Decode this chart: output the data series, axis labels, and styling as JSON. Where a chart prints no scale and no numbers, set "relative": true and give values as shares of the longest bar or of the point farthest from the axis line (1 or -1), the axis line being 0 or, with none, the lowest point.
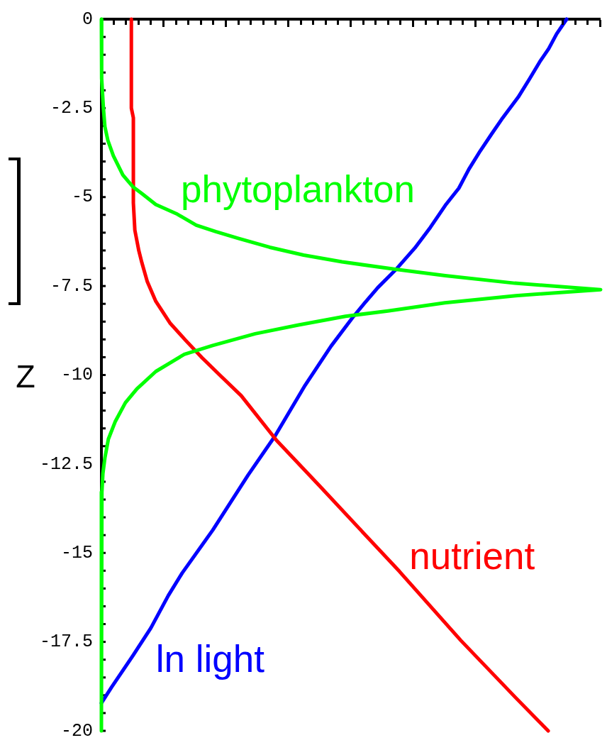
{
  "chart_data": {
    "type": "line",
    "orientation": "horizontal",
    "relative": true,
    "ylabel": "Z",
    "ylim": [
      -20,
      0
    ],
    "yticks": [
      0,
      {
        "value": -0.5,
        "label": null
      },
      {
        "value": -1,
        "label": null
      },
      {
        "value": -1.5,
        "label": null
      },
      {
        "value": -2,
        "label": null
      },
      -2.5,
      {
        "value": -3,
        "label": null
      },
      {
        "value": -3.5,
        "label": null
      },
      {
        "value": -4,
        "label": null
      },
      {
        "value": -4.5,
        "label": null
      },
      -5,
      {
        "value": -5.5,
        "label": null
      },
      {
        "value": -6,
        "label": null
      },
      {
        "value": -6.5,
        "label": null
      },
      {
        "value": -7,
        "label": null
      },
      -7.5,
      {
        "value": -8,
        "label": null
      },
      {
        "value": -8.5,
        "label": null
      },
      {
        "value": -9,
        "label": null
      },
      {
        "value": -9.5,
        "label": null
      },
      -10,
      {
        "value": -10.5,
        "label": null
      },
      {
        "value": -11,
        "label": null
      },
      {
        "value": -11.5,
        "label": null
      },
      {
        "value": -12,
        "label": null
      },
      -12.5,
      {
        "value": -13,
        "label": null
      },
      {
        "value": -13.5,
        "label": null
      },
      {
        "value": -14,
        "label": null
      },
      {
        "value": -14.5,
        "label": null
      },
      -15,
      {
        "value": -15.5,
        "label": null
      },
      {
        "value": -16,
        "label": null
      },
      {
        "value": -16.5,
        "label": null
      },
      {
        "value": -17,
        "label": null
      },
      -17.5,
      {
        "value": -18,
        "label": null
      },
      {
        "value": -18.5,
        "label": null
      },
      {
        "value": -19,
        "label": null
      },
      {
        "value": -19.5,
        "label": null
      },
      -20
    ],
    "tick_labels": "y",
    "marker": "none",
    "line_style": "solid",
    "series": [
      {
        "name": "phytoplankton",
        "color": "#00ff00",
        "x": [
          0,
          -0.89,
          -1.67,
          -2.5,
          -3.02,
          -3.41,
          -3.84,
          -4.38,
          -4.71,
          -4.9,
          -5.21,
          -5.48,
          -5.79,
          -5.97,
          -6.16,
          -6.41,
          -6.63,
          -6.82,
          -7.03,
          -7.21,
          -7.42,
          -7.6,
          -7.77,
          -7.97,
          -8.2,
          -8.35,
          -8.6,
          -8.84,
          -9.17,
          -9.42,
          -9.9,
          -10.39,
          -10.78,
          -11.3,
          -11.8,
          -12.33,
          -12.77,
          -13.29,
          -14.17,
          -20
        ],
        "values": [
          0,
          0,
          0.001,
          0.004,
          0.007,
          0.013,
          0.024,
          0.043,
          0.063,
          0.081,
          0.109,
          0.152,
          0.19,
          0.229,
          0.274,
          0.337,
          0.405,
          0.482,
          0.589,
          0.689,
          0.828,
          1,
          0.83,
          0.688,
          0.574,
          0.489,
          0.393,
          0.308,
          0.223,
          0.166,
          0.109,
          0.071,
          0.048,
          0.028,
          0.014,
          0.007,
          0.003,
          0.001,
          0,
          0
        ]
      },
      {
        "name": "nutrient",
        "color": "#ff0000",
        "x": [
          0,
          -2.5,
          -2.77,
          -5.16,
          -5.93,
          -6.51,
          -6.84,
          -7.38,
          -7.93,
          -8.55,
          -9.03,
          -9.52,
          -10,
          -10.58,
          -11.84,
          -13.1,
          -14.38,
          -15.52,
          -17.46,
          -19.07,
          -20
        ],
        "values": [
          0.06,
          0.06,
          0.064,
          0.064,
          0.067,
          0.075,
          0.081,
          0.092,
          0.109,
          0.138,
          0.169,
          0.202,
          0.237,
          0.28,
          0.351,
          0.436,
          0.521,
          0.597,
          0.72,
          0.83,
          0.895
        ]
      },
      {
        "name": "ln light",
        "color": "#0000ff",
        "x": [
          0,
          -0.41,
          -0.83,
          -1.2,
          -1.67,
          -2.19,
          -2.77,
          -3.24,
          -3.7,
          -4.22,
          -4.75,
          -5.23,
          -5.85,
          -6.43,
          -7.05,
          -7.54,
          -8,
          -8.39,
          -9.19,
          -10.29,
          -11.71,
          -12.81,
          -14.36,
          -15.56,
          -16.2,
          -17.11,
          -17.89,
          -18.78,
          -19.22
        ],
        "values": [
          0.932,
          0.912,
          0.896,
          0.878,
          0.858,
          0.835,
          0.804,
          0.781,
          0.759,
          0.736,
          0.716,
          0.689,
          0.659,
          0.628,
          0.589,
          0.554,
          0.526,
          0.503,
          0.46,
          0.408,
          0.348,
          0.294,
          0.223,
          0.162,
          0.134,
          0.099,
          0.063,
          0.02,
          0
        ]
      }
    ]
  }
}
